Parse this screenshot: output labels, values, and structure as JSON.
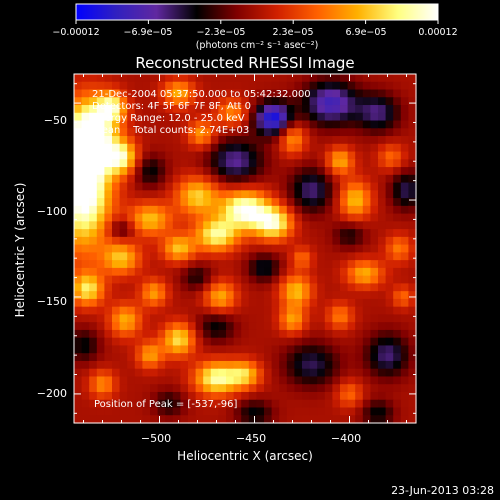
{
  "chart_data": {
    "type": "heatmap",
    "title": "Reconstructed RHESSI Image",
    "xlabel": "Heliocentric X (arcsec)",
    "ylabel": "Heliocentric Y (arcsec)",
    "xlim": [
      -545,
      -365
    ],
    "ylim": [
      -215,
      -35
    ],
    "x_ticks": [
      -500,
      -450,
      -400
    ],
    "y_ticks": [
      -200,
      -150,
      -100,
      -50
    ],
    "x_tick_labels": [
      "−500",
      "−450",
      "−400"
    ],
    "y_tick_labels": [
      "−200",
      "−150",
      "−100",
      "−50"
    ],
    "colorbar": {
      "min": -0.00012,
      "max": 0.00012,
      "tick_labels": [
        "−0.00012",
        "−6.9e−05",
        "−2.3e−05",
        "2.3e−05",
        "6.9e−05",
        "0.00012"
      ],
      "unit_label": "(photons cm⁻² s⁻¹ asec⁻²)",
      "colormap": [
        "#0000ff",
        "#3020c0",
        "#6028a0",
        "#000000",
        "#800000",
        "#d02000",
        "#ff6000",
        "#ffb000",
        "#ffff80",
        "#ffffff"
      ]
    },
    "annotations": {
      "time": "21-Dec-2004 05:37:50.000 to 05:42:32.000",
      "detectors": "Detectors: 4F 5F 6F 7F 8F, Att 0",
      "energy": "Energy Range: 12.0 - 25.0 keV",
      "clean": "Clean    Total counts: 2.74E+03",
      "peak": "Position of Peak = [-537,-96]"
    },
    "footer_date": "23-Jun-2013 03:28",
    "blobs": [
      {
        "x": -540,
        "y": -92,
        "sx": 10,
        "sy": 22,
        "v": 1.2
      },
      {
        "x": -535,
        "y": -65,
        "sx": 9,
        "sy": 12,
        "v": 0.85
      },
      {
        "x": -525,
        "y": -52,
        "sx": 5,
        "sy": 5,
        "v": 0.7
      },
      {
        "x": -520,
        "y": -78,
        "sx": 6,
        "sy": 6,
        "v": 0.75
      },
      {
        "x": -490,
        "y": -45,
        "sx": 6,
        "sy": 5,
        "v": 0.55
      },
      {
        "x": -478,
        "y": -66,
        "sx": 5,
        "sy": 5,
        "v": 0.5
      },
      {
        "x": -462,
        "y": -55,
        "sx": 6,
        "sy": 5,
        "v": 0.45
      },
      {
        "x": -430,
        "y": -68,
        "sx": 5,
        "sy": 6,
        "v": 0.5
      },
      {
        "x": -405,
        "y": -80,
        "sx": 5,
        "sy": 5,
        "v": 0.55
      },
      {
        "x": -397,
        "y": -100,
        "sx": 6,
        "sy": 7,
        "v": 0.6
      },
      {
        "x": -378,
        "y": -78,
        "sx": 5,
        "sy": 5,
        "v": 0.35
      },
      {
        "x": -505,
        "y": -110,
        "sx": 8,
        "sy": 6,
        "v": 0.6
      },
      {
        "x": -480,
        "y": -98,
        "sx": 8,
        "sy": 7,
        "v": 0.65
      },
      {
        "x": -455,
        "y": -105,
        "sx": 9,
        "sy": 7,
        "v": 1.0
      },
      {
        "x": -440,
        "y": -112,
        "sx": 7,
        "sy": 6,
        "v": 0.85
      },
      {
        "x": -470,
        "y": -118,
        "sx": 8,
        "sy": 6,
        "v": 0.8
      },
      {
        "x": -490,
        "y": -125,
        "sx": 6,
        "sy": 5,
        "v": 0.6
      },
      {
        "x": -520,
        "y": -130,
        "sx": 7,
        "sy": 6,
        "v": 0.6
      },
      {
        "x": -538,
        "y": -146,
        "sx": 6,
        "sy": 6,
        "v": 0.7
      },
      {
        "x": -503,
        "y": -148,
        "sx": 5,
        "sy": 5,
        "v": 0.5
      },
      {
        "x": -468,
        "y": -150,
        "sx": 6,
        "sy": 6,
        "v": 0.55
      },
      {
        "x": -428,
        "y": -147,
        "sx": 6,
        "sy": 6,
        "v": 0.6
      },
      {
        "x": -392,
        "y": -138,
        "sx": 7,
        "sy": 5,
        "v": 0.55
      },
      {
        "x": -374,
        "y": -125,
        "sx": 5,
        "sy": 5,
        "v": 0.4
      },
      {
        "x": -372,
        "y": -150,
        "sx": 4,
        "sy": 4,
        "v": 0.35
      },
      {
        "x": -518,
        "y": -162,
        "sx": 6,
        "sy": 6,
        "v": 0.55
      },
      {
        "x": -490,
        "y": -172,
        "sx": 6,
        "sy": 6,
        "v": 0.7
      },
      {
        "x": -505,
        "y": -180,
        "sx": 5,
        "sy": 5,
        "v": 0.5
      },
      {
        "x": -530,
        "y": -195,
        "sx": 5,
        "sy": 5,
        "v": 0.45
      },
      {
        "x": -470,
        "y": -192,
        "sx": 8,
        "sy": 6,
        "v": 0.85
      },
      {
        "x": -455,
        "y": -190,
        "sx": 6,
        "sy": 5,
        "v": 0.6
      },
      {
        "x": -430,
        "y": -162,
        "sx": 5,
        "sy": 5,
        "v": 0.5
      },
      {
        "x": -405,
        "y": -160,
        "sx": 5,
        "sy": 5,
        "v": 0.4
      },
      {
        "x": -400,
        "y": -200,
        "sx": 5,
        "sy": 5,
        "v": 0.35
      },
      {
        "x": -425,
        "y": -130,
        "sx": 4,
        "sy": 4,
        "v": 0.35
      },
      {
        "x": -460,
        "y": -80,
        "sx": 10,
        "sy": 8,
        "v": -0.55
      },
      {
        "x": -440,
        "y": -58,
        "sx": 7,
        "sy": 6,
        "v": -0.9
      },
      {
        "x": -410,
        "y": -50,
        "sx": 10,
        "sy": 8,
        "v": -0.7
      },
      {
        "x": -385,
        "y": -55,
        "sx": 8,
        "sy": 7,
        "v": -0.5
      },
      {
        "x": -420,
        "y": -95,
        "sx": 8,
        "sy": 8,
        "v": -0.5
      },
      {
        "x": -370,
        "y": -95,
        "sx": 6,
        "sy": 7,
        "v": -0.45
      },
      {
        "x": -400,
        "y": -118,
        "sx": 6,
        "sy": 5,
        "v": -0.3
      },
      {
        "x": -505,
        "y": -85,
        "sx": 6,
        "sy": 6,
        "v": -0.35
      },
      {
        "x": -480,
        "y": -140,
        "sx": 6,
        "sy": 5,
        "v": -0.3
      },
      {
        "x": -445,
        "y": -135,
        "sx": 6,
        "sy": 5,
        "v": -0.4
      },
      {
        "x": -470,
        "y": -165,
        "sx": 7,
        "sy": 6,
        "v": -0.35
      },
      {
        "x": -420,
        "y": -185,
        "sx": 10,
        "sy": 8,
        "v": -0.45
      },
      {
        "x": -380,
        "y": -180,
        "sx": 8,
        "sy": 8,
        "v": -0.5
      },
      {
        "x": -520,
        "y": -115,
        "sx": 5,
        "sy": 4,
        "v": -0.35
      },
      {
        "x": -540,
        "y": -175,
        "sx": 6,
        "sy": 6,
        "v": -0.35
      },
      {
        "x": -495,
        "y": -205,
        "sx": 6,
        "sy": 5,
        "v": -0.3
      },
      {
        "x": -450,
        "y": -210,
        "sx": 7,
        "sy": 5,
        "v": -0.35
      },
      {
        "x": -385,
        "y": -210,
        "sx": 6,
        "sy": 5,
        "v": -0.35
      }
    ]
  }
}
